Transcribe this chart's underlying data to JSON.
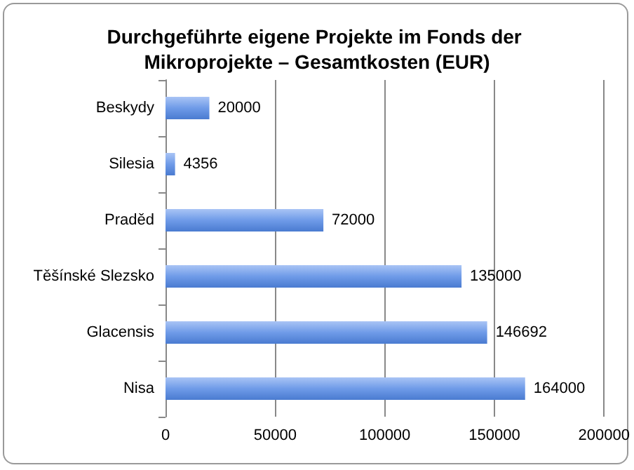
{
  "chart_data": {
    "type": "bar",
    "orientation": "horizontal",
    "title": "Durchgeführte eigene Projekte im Fonds der Mikroprojekte – Gesamtkosten (EUR)",
    "categories": [
      "Beskydy",
      "Silesia",
      "Praděd",
      "Těšínské Slezsko",
      "Glacensis",
      "Nisa"
    ],
    "values": [
      20000,
      4356,
      72000,
      135000,
      146692,
      164000
    ],
    "color": "#6f9be8",
    "xlim": [
      0,
      200000
    ],
    "xticks": [
      0,
      50000,
      100000,
      150000,
      200000
    ],
    "grid": "x",
    "data_labels": true
  }
}
